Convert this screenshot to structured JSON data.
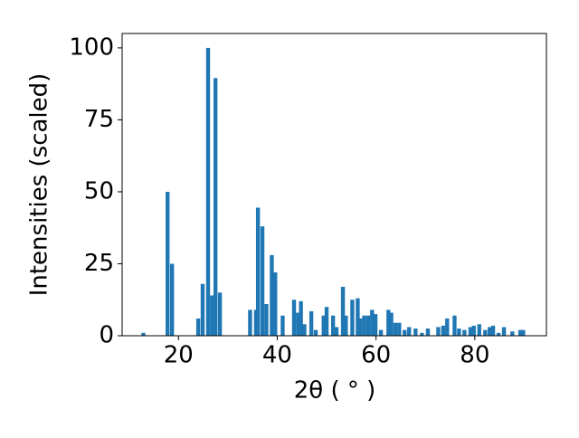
{
  "chart_data": {
    "type": "bar",
    "xlabel": "2θ ( ° )",
    "ylabel": "Intensities (scaled)",
    "color": "#1f77b4",
    "bar_width": 0.8,
    "x": [
      12.9,
      17.8,
      18.7,
      24.0,
      24.9,
      26.0,
      26.8,
      27.5,
      28.4,
      34.5,
      35.7,
      36.1,
      37.0,
      37.8,
      38.9,
      39.6,
      41.1,
      43.4,
      44.2,
      44.8,
      45.5,
      46.9,
      47.8,
      49.4,
      50.0,
      51.3,
      52.0,
      53.3,
      53.9,
      55.2,
      56.3,
      56.8,
      57.6,
      58.4,
      59.2,
      59.9,
      61.0,
      62.5,
      63.1,
      63.9,
      64.7,
      65.8,
      66.7,
      68.0,
      69.3,
      70.5,
      72.6,
      73.6,
      74.4,
      75.9,
      76.8,
      77.9,
      79.1,
      79.8,
      80.9,
      82.1,
      83.0,
      83.7,
      84.8,
      85.9,
      87.6,
      89.2,
      89.8
    ],
    "values": [
      1,
      50,
      25,
      6,
      18,
      100,
      14,
      89.5,
      15,
      9,
      9,
      44.5,
      38,
      11,
      28,
      22,
      7,
      12.5,
      8,
      12,
      4,
      8.5,
      2,
      7,
      10,
      7,
      3,
      17,
      7,
      12.5,
      13,
      6,
      7,
      7,
      9,
      7.5,
      2,
      9,
      8,
      4.5,
      4.5,
      2,
      3,
      2.5,
      1,
      2.5,
      3,
      3.5,
      6,
      7,
      2.5,
      2,
      3,
      3.5,
      4,
      2,
      3,
      3.5,
      1,
      3,
      1.5,
      2,
      2
    ],
    "xlim": [
      8.6,
      94.5
    ],
    "ylim": [
      0,
      105
    ],
    "xticks": [
      20,
      40,
      60,
      80
    ],
    "yticks": [
      0,
      25,
      50,
      75,
      100
    ]
  }
}
